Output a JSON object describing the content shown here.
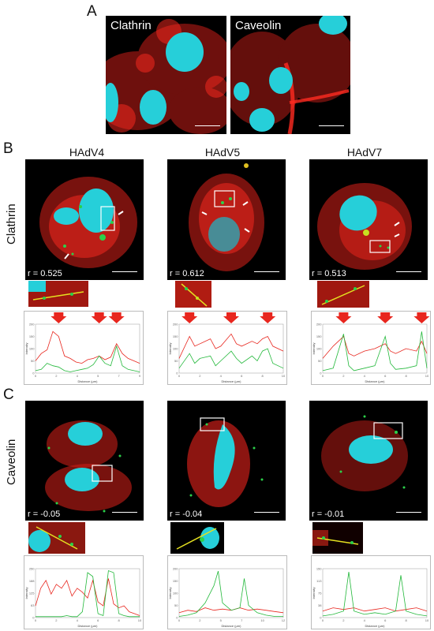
{
  "panels": {
    "a": {
      "letter": "A",
      "images": [
        {
          "label": "Clathrin"
        },
        {
          "label": "Caveolin"
        }
      ]
    },
    "b": {
      "letter": "B",
      "row_label": "Clathrin",
      "columns": [
        "HAdV4",
        "HAdV5",
        "HAdV7"
      ],
      "r_values": [
        "r = 0.525",
        "r = 0.612",
        "r = 0.513"
      ]
    },
    "c": {
      "letter": "C",
      "row_label": "Caveolin",
      "r_values": [
        "r = -0.05",
        "r = -0.04",
        "r = -0.01"
      ]
    }
  },
  "colors": {
    "clathrin_caveolin": "#e8261e",
    "virus": "#2bd14a",
    "nucleus": "#27d3de",
    "arrow": "#e8261e"
  },
  "chart_data": [
    {
      "type": "line",
      "panel": "B-HAdV4",
      "xlabel": "Distance (µm)",
      "ylabel": "Intensity",
      "xlim": [
        0,
        9
      ],
      "ylim": [
        0,
        200
      ],
      "arrows_at_x": [
        2,
        5.5,
        7
      ],
      "series": [
        {
          "color": "red",
          "x": [
            0,
            0.5,
            1,
            1.5,
            2,
            2.5,
            3,
            3.5,
            4,
            4.5,
            5,
            5.5,
            6,
            6.5,
            7,
            7.5,
            8,
            8.5,
            9
          ],
          "values": [
            50,
            80,
            95,
            170,
            150,
            70,
            60,
            45,
            40,
            55,
            60,
            70,
            55,
            65,
            120,
            80,
            60,
            50,
            40
          ]
        },
        {
          "color": "green",
          "x": [
            0,
            0.5,
            1,
            1.5,
            2,
            2.5,
            3,
            3.5,
            4,
            4.5,
            5,
            5.5,
            6,
            6.5,
            7,
            7.5,
            8,
            8.5,
            9
          ],
          "values": [
            10,
            15,
            40,
            30,
            25,
            10,
            5,
            10,
            15,
            20,
            35,
            70,
            40,
            30,
            110,
            30,
            15,
            10,
            5
          ]
        }
      ]
    },
    {
      "type": "line",
      "panel": "B-HAdV5",
      "xlabel": "Distance (µm)",
      "ylabel": "Intensity",
      "xlim": [
        0,
        10
      ],
      "ylim": [
        0,
        200
      ],
      "arrows_at_x": [
        1,
        5,
        8.5
      ],
      "series": [
        {
          "color": "red",
          "x": [
            0,
            1,
            1.5,
            2,
            3,
            3.5,
            4,
            5,
            5.5,
            6,
            7,
            7.5,
            8,
            8.5,
            9,
            10
          ],
          "values": [
            60,
            150,
            110,
            120,
            140,
            100,
            110,
            160,
            120,
            110,
            130,
            120,
            140,
            150,
            110,
            90
          ]
        },
        {
          "color": "green",
          "x": [
            0,
            1,
            1.5,
            2,
            3,
            3.5,
            4,
            5,
            5.5,
            6,
            7,
            7.5,
            8,
            8.5,
            9,
            10
          ],
          "values": [
            20,
            80,
            40,
            60,
            70,
            30,
            50,
            90,
            60,
            40,
            70,
            50,
            90,
            100,
            40,
            20
          ]
        }
      ]
    },
    {
      "type": "line",
      "panel": "B-HAdV7",
      "xlabel": "Distance (µm)",
      "ylabel": "Intensity",
      "xlim": [
        0,
        10
      ],
      "ylim": [
        0,
        200
      ],
      "arrows_at_x": [
        2,
        6,
        9.5
      ],
      "series": [
        {
          "color": "red",
          "x": [
            0,
            1,
            2,
            2.5,
            3,
            4,
            5,
            6,
            6.5,
            7,
            8,
            9,
            9.5,
            10
          ],
          "values": [
            60,
            110,
            150,
            80,
            70,
            90,
            100,
            120,
            90,
            80,
            100,
            90,
            130,
            80
          ]
        },
        {
          "color": "green",
          "x": [
            0,
            1,
            2,
            2.5,
            3,
            4,
            5,
            6,
            6.5,
            7,
            8,
            9,
            9.5,
            10
          ],
          "values": [
            10,
            20,
            160,
            30,
            10,
            20,
            30,
            150,
            40,
            15,
            20,
            30,
            170,
            20
          ]
        }
      ]
    },
    {
      "type": "line",
      "panel": "C-HAdV4",
      "xlabel": "Distance (µm)",
      "ylabel": "Intensity",
      "xlim": [
        0,
        10
      ],
      "ylim": [
        0,
        250
      ],
      "series": [
        {
          "color": "red",
          "x": [
            0,
            0.5,
            1,
            1.5,
            2,
            2.5,
            3,
            3.5,
            4,
            4.5,
            5,
            5.5,
            6,
            6.5,
            7,
            7.5,
            8,
            8.5,
            9,
            9.5,
            10
          ],
          "values": [
            60,
            150,
            190,
            120,
            170,
            150,
            190,
            110,
            150,
            130,
            100,
            190,
            80,
            60,
            200,
            70,
            50,
            60,
            30,
            20,
            10
          ]
        },
        {
          "color": "green",
          "x": [
            0,
            0.5,
            1,
            1.5,
            2,
            2.5,
            3,
            3.5,
            4,
            4.5,
            5,
            5.5,
            6,
            6.5,
            7,
            7.5,
            8,
            8.5,
            9,
            9.5,
            10
          ],
          "values": [
            5,
            5,
            5,
            5,
            5,
            5,
            10,
            5,
            5,
            30,
            230,
            210,
            20,
            10,
            240,
            230,
            20,
            10,
            5,
            5,
            5
          ]
        }
      ]
    },
    {
      "type": "line",
      "panel": "C-HAdV5",
      "xlabel": "Distance (µm)",
      "ylabel": "Intensity",
      "xlim": [
        0,
        12
      ],
      "ylim": [
        0,
        200
      ],
      "series": [
        {
          "color": "red",
          "x": [
            0,
            1,
            2,
            3,
            4,
            5,
            6,
            7,
            8,
            9,
            10,
            11,
            12
          ],
          "values": [
            20,
            30,
            25,
            40,
            30,
            35,
            30,
            40,
            30,
            35,
            30,
            25,
            20
          ]
        },
        {
          "color": "green",
          "x": [
            0,
            1,
            2,
            3,
            4,
            4.5,
            5,
            6,
            7,
            7.5,
            8,
            9,
            10,
            11,
            12
          ],
          "values": [
            5,
            10,
            20,
            60,
            130,
            190,
            60,
            30,
            40,
            160,
            50,
            20,
            10,
            5,
            5
          ]
        }
      ]
    },
    {
      "type": "line",
      "panel": "C-HAdV7",
      "xlabel": "Distance (µm)",
      "ylabel": "Intensity",
      "xlim": [
        0,
        10
      ],
      "ylim": [
        0,
        150
      ],
      "series": [
        {
          "color": "red",
          "x": [
            0,
            1,
            2,
            3,
            4,
            5,
            6,
            7,
            8,
            9,
            10
          ],
          "values": [
            20,
            30,
            25,
            30,
            20,
            25,
            30,
            20,
            25,
            30,
            20
          ]
        },
        {
          "color": "green",
          "x": [
            0,
            1,
            2,
            2.5,
            3,
            4,
            5,
            6,
            7,
            7.5,
            8,
            9,
            10
          ],
          "values": [
            5,
            10,
            20,
            140,
            20,
            10,
            15,
            10,
            20,
            130,
            20,
            10,
            5
          ]
        }
      ]
    }
  ]
}
